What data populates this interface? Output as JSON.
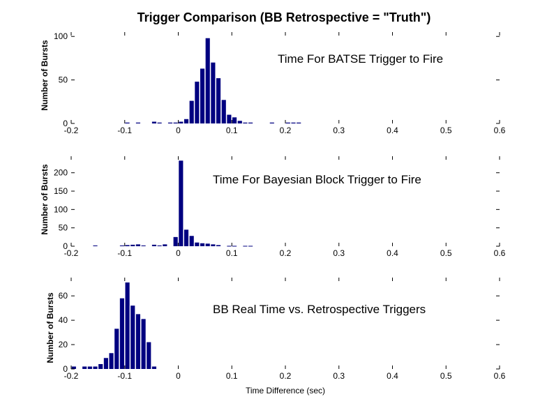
{
  "figure_title": "Trigger Comparison (BB Retrospective = \"Truth\")",
  "colors": {
    "bar": "#000080",
    "axis": "#000000",
    "background": "#ffffff"
  },
  "chart_data": [
    {
      "type": "bar",
      "title": "Trigger Comparison (BB Retrospective = \"Truth\")",
      "annotation": "Time For BATSE Trigger to Fire",
      "xlabel": "",
      "ylabel": "Number of Bursts",
      "xlim": [
        -0.2,
        0.6
      ],
      "ylim": [
        0,
        105
      ],
      "xticks": [
        "-0.2",
        "-0.1",
        "0",
        "0.1",
        "0.2",
        "0.3",
        "0.4",
        "0.5",
        "0.6"
      ],
      "yticks": [
        "0",
        "50",
        "100"
      ],
      "bar_width": 0.01,
      "bars": [
        {
          "x": -0.095,
          "y": 1
        },
        {
          "x": -0.075,
          "y": 1
        },
        {
          "x": -0.045,
          "y": 2
        },
        {
          "x": -0.035,
          "y": 1
        },
        {
          "x": -0.015,
          "y": 1
        },
        {
          "x": -0.005,
          "y": 1
        },
        {
          "x": 0.005,
          "y": 2
        },
        {
          "x": 0.015,
          "y": 5
        },
        {
          "x": 0.025,
          "y": 26
        },
        {
          "x": 0.035,
          "y": 48
        },
        {
          "x": 0.045,
          "y": 63
        },
        {
          "x": 0.055,
          "y": 98
        },
        {
          "x": 0.065,
          "y": 70
        },
        {
          "x": 0.075,
          "y": 52
        },
        {
          "x": 0.085,
          "y": 27
        },
        {
          "x": 0.095,
          "y": 10
        },
        {
          "x": 0.105,
          "y": 7
        },
        {
          "x": 0.115,
          "y": 3
        },
        {
          "x": 0.125,
          "y": 1
        },
        {
          "x": 0.135,
          "y": 1
        },
        {
          "x": 0.175,
          "y": 1
        },
        {
          "x": 0.205,
          "y": 1
        },
        {
          "x": 0.215,
          "y": 1
        },
        {
          "x": 0.225,
          "y": 1
        }
      ]
    },
    {
      "type": "bar",
      "annotation": "Time For Bayesian Block Trigger to Fire",
      "xlabel": "",
      "ylabel": "Number of Bursts",
      "xlim": [
        -0.2,
        0.6
      ],
      "ylim": [
        0,
        245
      ],
      "xticks": [
        "-0.2",
        "-0.1",
        "0",
        "0.1",
        "0.2",
        "0.3",
        "0.4",
        "0.5",
        "0.6"
      ],
      "yticks": [
        "0",
        "50",
        "100",
        "150",
        "200"
      ],
      "bar_width": 0.01,
      "bars": [
        {
          "x": -0.155,
          "y": 2
        },
        {
          "x": -0.105,
          "y": 2
        },
        {
          "x": -0.095,
          "y": 3
        },
        {
          "x": -0.085,
          "y": 4
        },
        {
          "x": -0.075,
          "y": 5
        },
        {
          "x": -0.065,
          "y": 2
        },
        {
          "x": -0.045,
          "y": 4
        },
        {
          "x": -0.035,
          "y": 2
        },
        {
          "x": -0.025,
          "y": 5
        },
        {
          "x": -0.005,
          "y": 25
        },
        {
          "x": 0.005,
          "y": 233
        },
        {
          "x": 0.015,
          "y": 45
        },
        {
          "x": 0.025,
          "y": 28
        },
        {
          "x": 0.035,
          "y": 10
        },
        {
          "x": 0.045,
          "y": 8
        },
        {
          "x": 0.055,
          "y": 7
        },
        {
          "x": 0.065,
          "y": 5
        },
        {
          "x": 0.075,
          "y": 3
        },
        {
          "x": 0.095,
          "y": 1
        },
        {
          "x": 0.105,
          "y": 1
        },
        {
          "x": 0.125,
          "y": 1
        },
        {
          "x": 0.135,
          "y": 1
        }
      ]
    },
    {
      "type": "bar",
      "annotation": "BB Real Time vs. Retrospective Triggers",
      "xlabel": "Time Difference (sec)",
      "ylabel": "Number of Bursts",
      "xlim": [
        -0.2,
        0.6
      ],
      "ylim": [
        0,
        75
      ],
      "xticks": [
        "-0.2",
        "-0.1",
        "0",
        "0.1",
        "0.2",
        "0.3",
        "0.4",
        "0.5",
        "0.6"
      ],
      "yticks": [
        "0",
        "20",
        "40",
        "60"
      ],
      "bar_width": 0.01,
      "bars": [
        {
          "x": -0.195,
          "y": 2
        },
        {
          "x": -0.175,
          "y": 2
        },
        {
          "x": -0.165,
          "y": 2
        },
        {
          "x": -0.155,
          "y": 2
        },
        {
          "x": -0.145,
          "y": 4
        },
        {
          "x": -0.135,
          "y": 9
        },
        {
          "x": -0.125,
          "y": 13
        },
        {
          "x": -0.115,
          "y": 33
        },
        {
          "x": -0.105,
          "y": 58
        },
        {
          "x": -0.095,
          "y": 71
        },
        {
          "x": -0.085,
          "y": 52
        },
        {
          "x": -0.075,
          "y": 45
        },
        {
          "x": -0.065,
          "y": 41
        },
        {
          "x": -0.055,
          "y": 22
        },
        {
          "x": -0.045,
          "y": 2
        }
      ]
    }
  ]
}
